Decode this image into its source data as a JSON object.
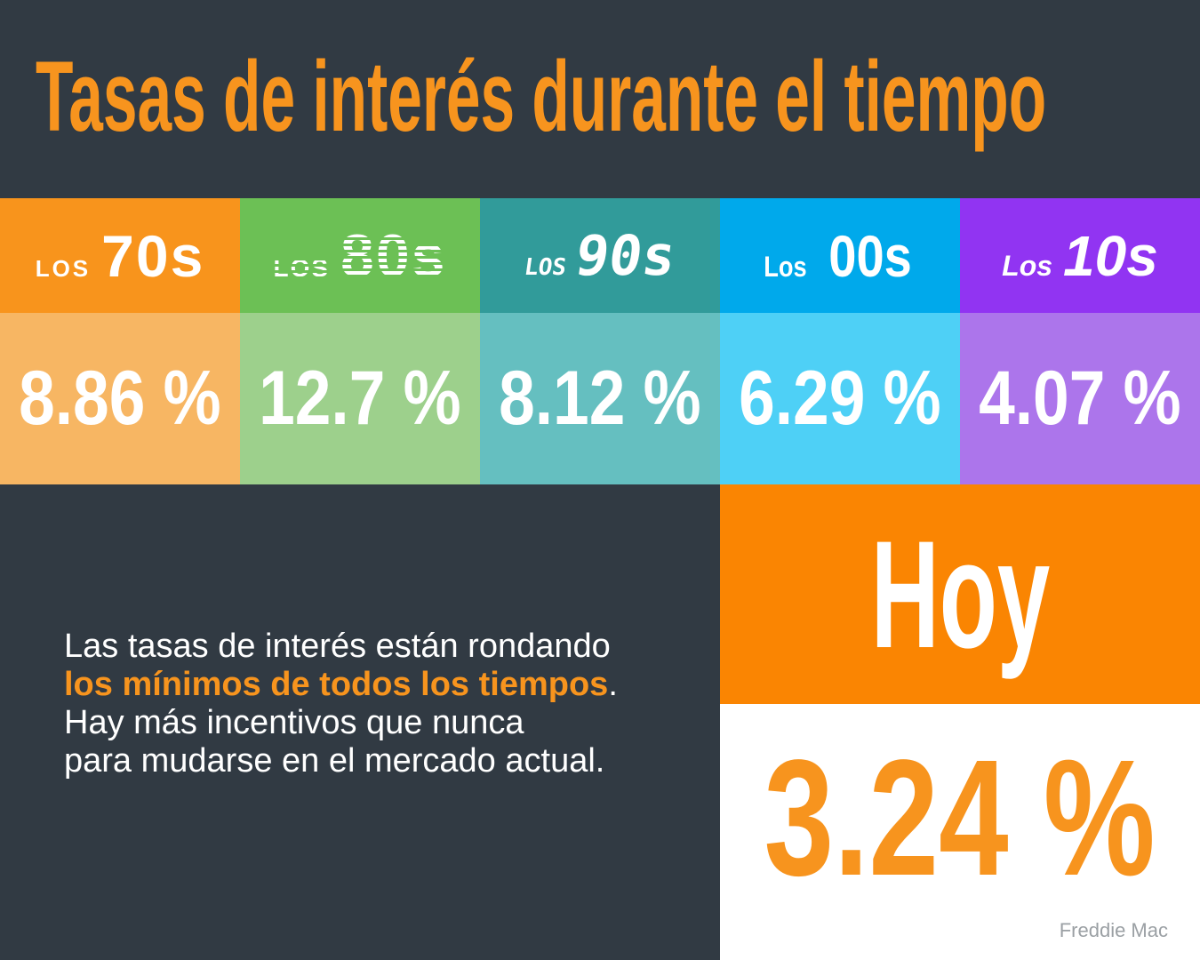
{
  "title": "Tasas de interés durante el tiempo",
  "colors": {
    "background": "#313A43",
    "accent_orange": "#F7941E",
    "today_block_orange": "#FA8502",
    "panel_white": "#FFFFFF",
    "body_text_white": "#FFFFFF",
    "source_gray": "#9BA0A4"
  },
  "columns": [
    {
      "era_prefix": "LOS",
      "era": "70s",
      "rate": "8.86 %",
      "header_color": "#F8941C",
      "tint_color": "#F7B663"
    },
    {
      "era_prefix": "LOS",
      "era": "80s",
      "rate": "12.7 %",
      "header_color": "#6CC055",
      "tint_color": "#9DD08C"
    },
    {
      "era_prefix": "LOS",
      "era": "90s",
      "rate": "8.12 %",
      "header_color": "#319B9A",
      "tint_color": "#65BFC0"
    },
    {
      "era_prefix": "Los",
      "era": "00s",
      "rate": "6.29 %",
      "header_color": "#00A9EB",
      "tint_color": "#4ED0F6"
    },
    {
      "era_prefix": "Los",
      "era": "10s",
      "rate": "4.07 %",
      "header_color": "#9134F2",
      "tint_color": "#AC75EB"
    }
  ],
  "body": {
    "line1": "Las tasas de interés están rondando",
    "line2_highlight": "los mínimos de todos los tiempos",
    "line2_period": ".",
    "line3": "Hay más incentivos que nunca",
    "line4": "para mudarse en el mercado actual."
  },
  "today": {
    "label": "Hoy",
    "rate": "3.24 %"
  },
  "source": "Freddie Mac",
  "chart_data": {
    "type": "table",
    "title": "Tasas de interés durante el tiempo",
    "categories": [
      "Los 70s",
      "Los 80s",
      "Los 90s",
      "Los 00s",
      "Los 10s",
      "Hoy"
    ],
    "values": [
      8.86,
      12.7,
      8.12,
      6.29,
      4.07,
      3.24
    ],
    "unit": "%",
    "source": "Freddie Mac"
  }
}
